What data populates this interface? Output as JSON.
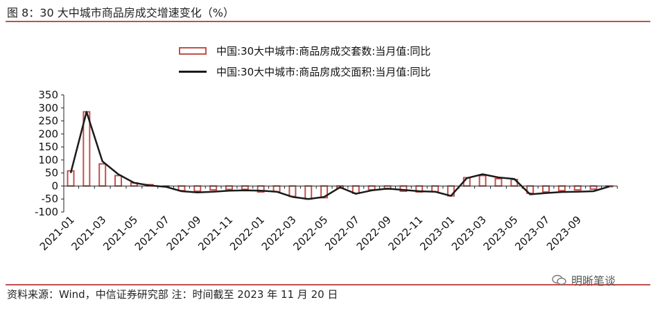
{
  "figure": {
    "title": "图 8：30 大中城市商品房成交增速变化（%）",
    "source": "资料来源：Wind，中信证券研究部  注：时间截至 2023 年 11 月 20 日",
    "watermark": "明晰笔谈"
  },
  "colors": {
    "bar": "#c0504d",
    "line": "#1a1a1a",
    "rule": "#c0504d"
  },
  "chart_data": {
    "type": "bar",
    "xlabel": "",
    "ylabel": "",
    "ylim": [
      -100,
      350
    ],
    "yticks": [
      350,
      300,
      250,
      200,
      150,
      100,
      50,
      0,
      -50,
      -100
    ],
    "grid": false,
    "legend_position": "top-center",
    "categories": [
      "2021-01",
      "2021-02",
      "2021-03",
      "2021-04",
      "2021-05",
      "2021-06",
      "2021-07",
      "2021-08",
      "2021-09",
      "2021-10",
      "2021-11",
      "2021-12",
      "2022-01",
      "2022-02",
      "2022-03",
      "2022-04",
      "2022-05",
      "2022-06",
      "2022-07",
      "2022-08",
      "2022-09",
      "2022-10",
      "2022-11",
      "2022-12",
      "2023-01",
      "2023-02",
      "2023-03",
      "2023-04",
      "2023-05",
      "2023-06",
      "2023-07",
      "2023-08",
      "2023-09",
      "2023-10",
      "2023-11"
    ],
    "xtick_labels": [
      "2021-01",
      "2021-03",
      "2021-05",
      "2021-07",
      "2021-09",
      "2021-11",
      "2022-01",
      "2022-03",
      "2022-05",
      "2022-07",
      "2022-09",
      "2022-11",
      "2023-01",
      "2023-03",
      "2023-05",
      "2023-07",
      "2023-09"
    ],
    "series": [
      {
        "name": "中国:30大中城市:商品房成交套数:当月值:同比",
        "render": "bar",
        "values": [
          58,
          285,
          85,
          40,
          12,
          5,
          -3,
          -18,
          -20,
          -15,
          -13,
          -13,
          -23,
          -22,
          -40,
          -50,
          -45,
          -8,
          -28,
          -15,
          -12,
          -20,
          -23,
          -22,
          -38,
          32,
          40,
          28,
          25,
          -28,
          -23,
          -18,
          -15,
          -12,
          0
        ]
      },
      {
        "name": "中国:30大中城市:商品房成交面积:当月值:同比",
        "render": "line",
        "values": [
          50,
          285,
          95,
          45,
          12,
          2,
          -3,
          -20,
          -25,
          -22,
          -18,
          -17,
          -18,
          -22,
          -42,
          -50,
          -42,
          -5,
          -30,
          -17,
          -10,
          -15,
          -20,
          -22,
          -38,
          30,
          45,
          33,
          27,
          -32,
          -27,
          -23,
          -22,
          -20,
          -2
        ]
      }
    ]
  }
}
